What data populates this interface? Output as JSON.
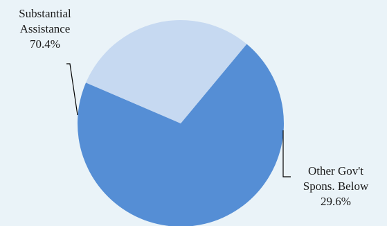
{
  "chart_data": {
    "type": "pie",
    "slices": [
      {
        "label_lines": [
          "Substantial",
          "Assistance"
        ],
        "value": 70.4,
        "value_label": "70.4%",
        "color": "#558ed5"
      },
      {
        "label_lines": [
          "Other Gov't",
          "Spons. Below"
        ],
        "value": 29.6,
        "value_label": "29.6%",
        "color": "#c6d9f1"
      }
    ],
    "legend": "none",
    "background": "#eaf3f8"
  }
}
